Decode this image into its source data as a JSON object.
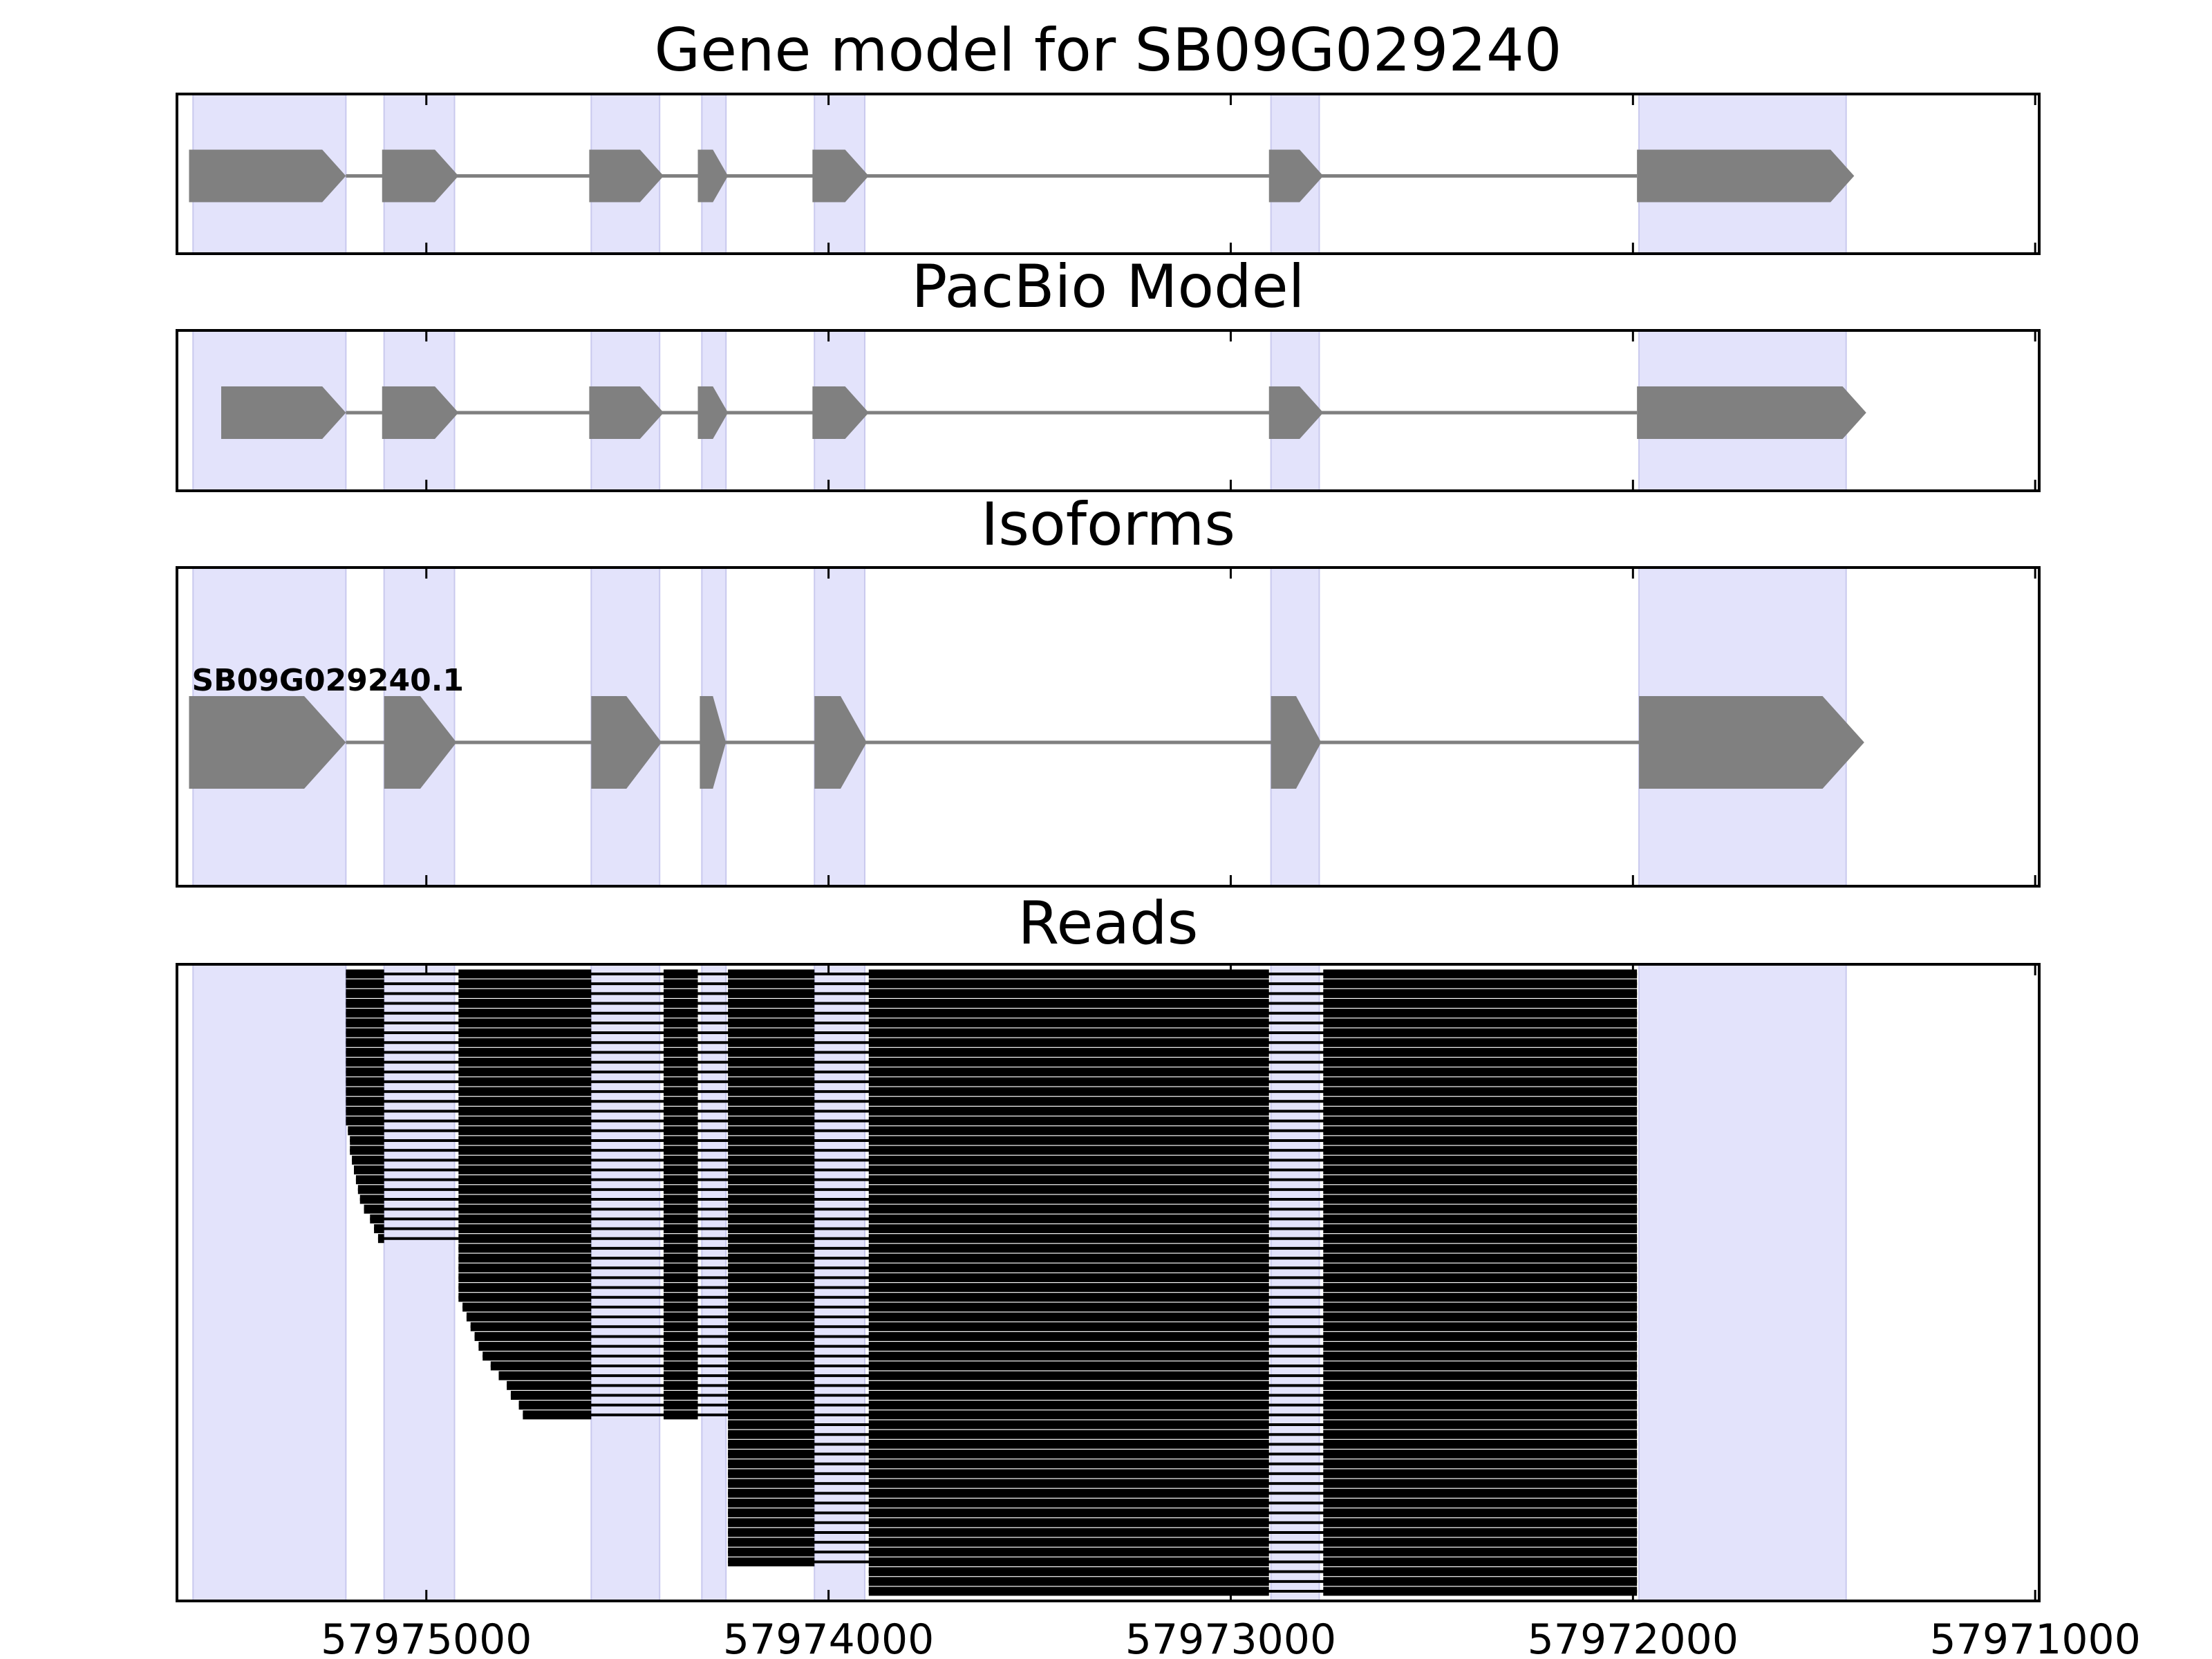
{
  "chart_data": {
    "type": "gene-track",
    "x_reversed": true,
    "xlim": [
      57975620,
      57970990
    ],
    "x_ticks": [
      57975000,
      57974000,
      57973000,
      57972000,
      57971000
    ],
    "x_tick_labels": [
      "57975000",
      "57974000",
      "57973000",
      "57972000",
      "57971000"
    ],
    "colors": {
      "exon_fill": "#808080",
      "intron_line": "#808080",
      "highlight_fill": "#e3e3fb",
      "highlight_edge": "#c9c9ee",
      "read_color": "#000000",
      "frame": "#000000"
    },
    "highlight_regions": [
      [
        57975580,
        57975200
      ],
      [
        57975105,
        57974930
      ],
      [
        57974590,
        57974420
      ],
      [
        57974315,
        57974255
      ],
      [
        57974035,
        57973910
      ],
      [
        57972900,
        57972780
      ],
      [
        57971985,
        57971470
      ]
    ],
    "panels": [
      {
        "title": "Gene model for SB09G029240",
        "exons": [
          [
            57975590,
            57975200
          ],
          [
            57975110,
            57974920
          ],
          [
            57974595,
            57974410
          ],
          [
            57974325,
            57974250
          ],
          [
            57974040,
            57973900
          ],
          [
            57972905,
            57972770
          ],
          [
            57971990,
            57971450
          ]
        ]
      },
      {
        "title": "PacBio Model",
        "exons": [
          [
            57975510,
            57975200
          ],
          [
            57975110,
            57974920
          ],
          [
            57974595,
            57974410
          ],
          [
            57974325,
            57974250
          ],
          [
            57974040,
            57973900
          ],
          [
            57972905,
            57972770
          ],
          [
            57971990,
            57971420
          ]
        ]
      },
      {
        "title": "Isoforms",
        "isoforms": [
          {
            "name": "SB09G029240.1",
            "exons": [
              [
                57975590,
                57975200
              ],
              [
                57975105,
                57974925
              ],
              [
                57974590,
                57974415
              ],
              [
                57974320,
                57974255
              ],
              [
                57974035,
                57973905
              ],
              [
                57972900,
                57972775
              ],
              [
                57971985,
                57971425
              ]
            ]
          }
        ]
      },
      {
        "title": "Reads",
        "read_count": 64,
        "template_exons": [
          [
            57975200,
            57975105
          ],
          [
            57974920,
            57974590
          ],
          [
            57974410,
            57974325
          ],
          [
            57974250,
            57974035
          ],
          [
            57973900,
            57972905
          ],
          [
            57972770,
            57971990
          ]
        ],
        "read_starts": [
          57975520,
          57975440,
          57975420,
          57975410,
          57975380,
          57975350,
          57975350,
          57975350,
          57975345,
          57975330,
          57975310,
          57975290,
          57975290,
          57975260,
          57975230,
          57975200,
          57975195,
          57975190,
          57975190,
          57975185,
          57975180,
          57975175,
          57975170,
          57975165,
          57975155,
          57975140,
          57975130,
          57975120,
          57975100,
          57975090,
          57975080,
          57975060,
          57975040,
          57974920,
          57974910,
          57974900,
          57974890,
          57974880,
          57974870,
          57974860,
          57974840,
          57974820,
          57974800,
          57974790,
          57974770,
          57974760,
          57974320,
          57974315,
          57974310,
          57974305,
          57974300,
          57974298,
          57974296,
          57974294,
          57974292,
          57974290,
          57974288,
          57974286,
          57974284,
          57974282,
          57974280,
          57974030,
          57974010,
          57973960
        ],
        "read_ends": [
          57971600,
          57971600,
          57971600,
          57971680,
          57971600,
          57971600,
          57971600,
          57971600,
          57971600,
          57971660,
          57971600,
          57971470,
          57971440,
          57971600,
          57971680,
          57971600,
          57971610,
          57971600,
          57971600,
          57971600,
          57971600,
          57971600,
          57971600,
          57971600,
          57971600,
          57971600,
          57971600,
          57971600,
          57971600,
          57971600,
          57971600,
          57971600,
          57971600,
          57971600,
          57971600,
          57971600,
          57971600,
          57971600,
          57971600,
          57971600,
          57971600,
          57971600,
          57971600,
          57971600,
          57971600,
          57971600,
          57971600,
          57971600,
          57971600,
          57971600,
          57971600,
          57971600,
          57971600,
          57971600,
          57971600,
          57971600,
          57971600,
          57971600,
          57971600,
          57971600,
          57971600,
          57971600,
          57971600,
          57971600
        ]
      }
    ]
  }
}
